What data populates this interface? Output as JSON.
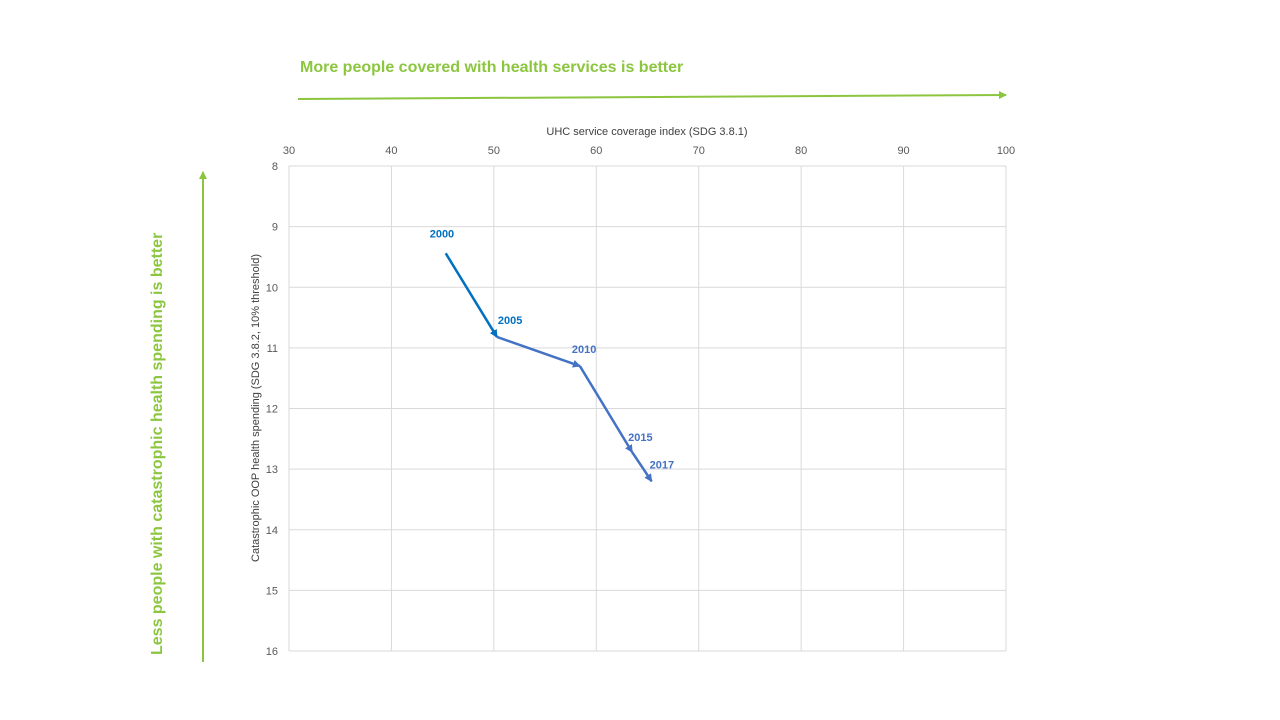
{
  "chart_data": {
    "type": "line",
    "xlabel": "UHC service coverage index (SDG 3.8.1)",
    "ylabel": "Catastrophic OOP health spending (SDG 3.8.2, 10% threshold)",
    "xlim": [
      30,
      100
    ],
    "ylim": [
      8,
      16
    ],
    "y_reversed": true,
    "x_axis_position": "top",
    "xticks": [
      30,
      40,
      50,
      60,
      70,
      80,
      90,
      100
    ],
    "yticks": [
      8,
      9,
      10,
      11,
      12,
      13,
      14,
      15,
      16
    ],
    "grid": true,
    "points": [
      {
        "label": "2000",
        "x": 45.3,
        "y": 9.44
      },
      {
        "label": "2005",
        "x": 50.3,
        "y": 10.82
      },
      {
        "label": "2010",
        "x": 58.4,
        "y": 11.3
      },
      {
        "label": "2015",
        "x": 63.5,
        "y": 12.72
      },
      {
        "label": "2017",
        "x": 65.4,
        "y": 13.2
      }
    ],
    "segment_colors": [
      "#0070c0",
      "#4472c4",
      "#4472c4",
      "#4472c4"
    ],
    "annotations": {
      "x_direction": "More people covered with health services is better",
      "y_direction": "Less people with catastrophic health spending is better",
      "color": "#8cc63f"
    }
  }
}
